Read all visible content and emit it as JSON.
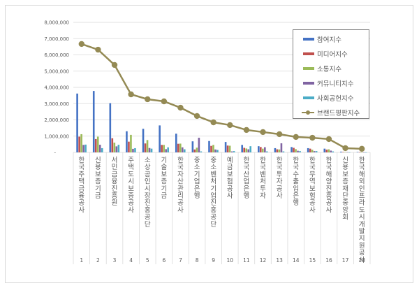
{
  "chart_data": {
    "type": "bar",
    "title": "",
    "xlabel": "",
    "ylabel": "",
    "ylim": [
      0,
      8000000
    ],
    "y_ticks": [
      "-",
      "1,000,000",
      "2,000,000",
      "3,000,000",
      "4,000,000",
      "5,000,000",
      "6,000,000",
      "7,000,000",
      "8,000,000"
    ],
    "grid": true,
    "legend_position": "upper-right",
    "x_numbers": [
      "1",
      "2",
      "3",
      "4",
      "5",
      "6",
      "7",
      "8",
      "9",
      "10",
      "11",
      "12",
      "13",
      "14",
      "15",
      "16",
      "17",
      "18"
    ],
    "categories": [
      "한국주택금융공사",
      "신용보증기금",
      "서민금융진흥원",
      "주택도시보증공사",
      "소상공인시장진흥공단",
      "기술보증기금",
      "한국자산관리공사",
      "중소기업은행",
      "중소벤처기업진흥공단",
      "예금보험공사",
      "한국산업은행",
      "한국벤처투자",
      "한국투자공사",
      "한국수출입은행",
      "한국무역보험공사",
      "한국해양진흥공사",
      "신용보증재단중앙회",
      "한국해외인프라도시개발지원공사"
    ],
    "series": [
      {
        "name": "참여지수",
        "type": "bar",
        "color": "#4472c4",
        "values": [
          3620000,
          3780000,
          3030000,
          1300000,
          1450000,
          1660000,
          1150000,
          680000,
          700000,
          640000,
          460000,
          380000,
          260000,
          330000,
          260000,
          230000,
          45000,
          25000
        ]
      },
      {
        "name": "미디어지수",
        "type": "bar",
        "color": "#c0504d",
        "values": [
          970000,
          820000,
          870000,
          660000,
          550000,
          460000,
          530000,
          180000,
          400000,
          420000,
          280000,
          330000,
          190000,
          280000,
          230000,
          170000,
          25000,
          15000
        ]
      },
      {
        "name": "소통지수",
        "type": "bar",
        "color": "#9bbb59",
        "values": [
          1120000,
          970000,
          600000,
          1080000,
          760000,
          460000,
          540000,
          290000,
          460000,
          410000,
          240000,
          230000,
          180000,
          200000,
          160000,
          190000,
          20000,
          10000
        ]
      },
      {
        "name": "커뮤니티지수",
        "type": "bar",
        "color": "#8064a2",
        "values": [
          460000,
          470000,
          370000,
          220000,
          270000,
          200000,
          310000,
          900000,
          180000,
          60000,
          190000,
          320000,
          560000,
          100000,
          80000,
          110000,
          15000,
          8000
        ]
      },
      {
        "name": "사회공헌지수",
        "type": "bar",
        "color": "#4bacc6",
        "values": [
          480000,
          260000,
          470000,
          260000,
          230000,
          310000,
          190000,
          60000,
          150000,
          80000,
          380000,
          60000,
          60000,
          80000,
          80000,
          60000,
          10000,
          5000
        ]
      },
      {
        "name": "브랜드평판지수",
        "type": "line",
        "color": "#948a54",
        "values": [
          6670000,
          6320000,
          5380000,
          3570000,
          3270000,
          3140000,
          2750000,
          2240000,
          1850000,
          1680000,
          1380000,
          1250000,
          1120000,
          950000,
          900000,
          820000,
          260000,
          220000
        ]
      }
    ]
  },
  "legend": {
    "items": [
      {
        "label": "참여지수",
        "color": "#4472c4",
        "kind": "bar"
      },
      {
        "label": "미디어지수",
        "color": "#c0504d",
        "kind": "bar"
      },
      {
        "label": "소통지수",
        "color": "#9bbb59",
        "kind": "bar"
      },
      {
        "label": "커뮤니티지수",
        "color": "#8064a2",
        "kind": "bar"
      },
      {
        "label": "사회공헌지수",
        "color": "#4bacc6",
        "kind": "bar"
      },
      {
        "label": "브랜드평판지수",
        "color": "#948a54",
        "kind": "line"
      }
    ]
  }
}
